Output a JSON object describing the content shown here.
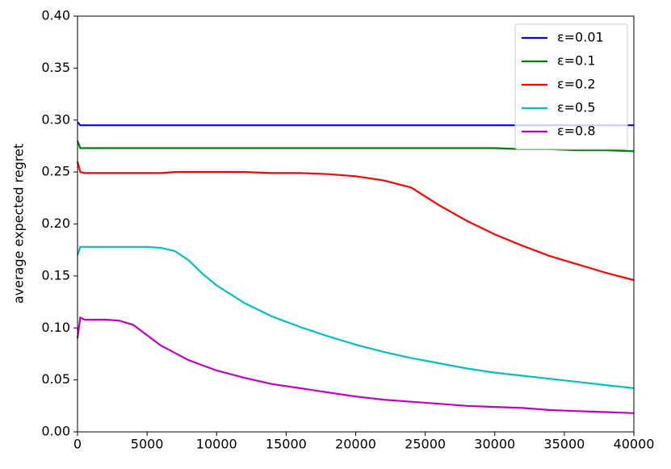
{
  "chart_data": {
    "type": "line",
    "ylabel": "average expected regret",
    "x": [
      0,
      200,
      500,
      1000,
      2000,
      3000,
      4000,
      5000,
      6000,
      7000,
      8000,
      9000,
      10000,
      12000,
      14000,
      16000,
      18000,
      20000,
      22000,
      24000,
      26000,
      28000,
      30000,
      32000,
      34000,
      36000,
      38000,
      40000
    ],
    "series": [
      {
        "name": "ε=0.01",
        "color": "#0000ff",
        "values": [
          0.298,
          0.295,
          0.295,
          0.295,
          0.295,
          0.295,
          0.295,
          0.295,
          0.295,
          0.295,
          0.295,
          0.295,
          0.295,
          0.295,
          0.295,
          0.295,
          0.295,
          0.295,
          0.295,
          0.295,
          0.295,
          0.295,
          0.295,
          0.295,
          0.295,
          0.295,
          0.295,
          0.295
        ]
      },
      {
        "name": "ε=0.1",
        "color": "#008000",
        "values": [
          0.28,
          0.273,
          0.273,
          0.273,
          0.273,
          0.273,
          0.273,
          0.273,
          0.273,
          0.273,
          0.273,
          0.273,
          0.273,
          0.273,
          0.273,
          0.273,
          0.273,
          0.273,
          0.273,
          0.273,
          0.273,
          0.273,
          0.273,
          0.272,
          0.272,
          0.271,
          0.271,
          0.27
        ]
      },
      {
        "name": "ε=0.2",
        "color": "#ff0000",
        "values": [
          0.26,
          0.25,
          0.249,
          0.249,
          0.249,
          0.249,
          0.249,
          0.249,
          0.249,
          0.25,
          0.25,
          0.25,
          0.25,
          0.25,
          0.249,
          0.249,
          0.248,
          0.246,
          0.242,
          0.235,
          0.218,
          0.203,
          0.19,
          0.179,
          0.169,
          0.161,
          0.153,
          0.146
        ]
      },
      {
        "name": "ε=0.5",
        "color": "#00bfbf",
        "values": [
          0.17,
          0.178,
          0.178,
          0.178,
          0.178,
          0.178,
          0.178,
          0.178,
          0.177,
          0.174,
          0.165,
          0.152,
          0.141,
          0.124,
          0.111,
          0.101,
          0.092,
          0.084,
          0.077,
          0.071,
          0.066,
          0.061,
          0.057,
          0.054,
          0.051,
          0.048,
          0.045,
          0.042
        ]
      },
      {
        "name": "ε=0.8",
        "color": "#bf00bf",
        "values": [
          0.09,
          0.11,
          0.108,
          0.108,
          0.108,
          0.107,
          0.103,
          0.093,
          0.083,
          0.076,
          0.069,
          0.064,
          0.059,
          0.052,
          0.046,
          0.042,
          0.038,
          0.034,
          0.031,
          0.029,
          0.027,
          0.025,
          0.024,
          0.023,
          0.021,
          0.02,
          0.019,
          0.018
        ]
      }
    ],
    "xlim": [
      0,
      40000
    ],
    "xticks": [
      0,
      5000,
      10000,
      15000,
      20000,
      25000,
      30000,
      35000,
      40000
    ],
    "ylim": [
      0,
      0.4
    ],
    "yticks": [
      {
        "value": 0,
        "label": "0.00"
      },
      {
        "value": 0.05,
        "label": "0.05"
      },
      {
        "value": 0.1,
        "label": "0.10"
      },
      {
        "value": 0.15,
        "label": "0.15"
      },
      {
        "value": 0.2,
        "label": "0.20"
      },
      {
        "value": 0.25,
        "label": "0.25"
      },
      {
        "value": 0.3,
        "label": "0.30"
      },
      {
        "value": 0.35,
        "label": "0.35"
      },
      {
        "value": 0.4,
        "label": "0.40"
      }
    ],
    "legend": "upper right"
  }
}
